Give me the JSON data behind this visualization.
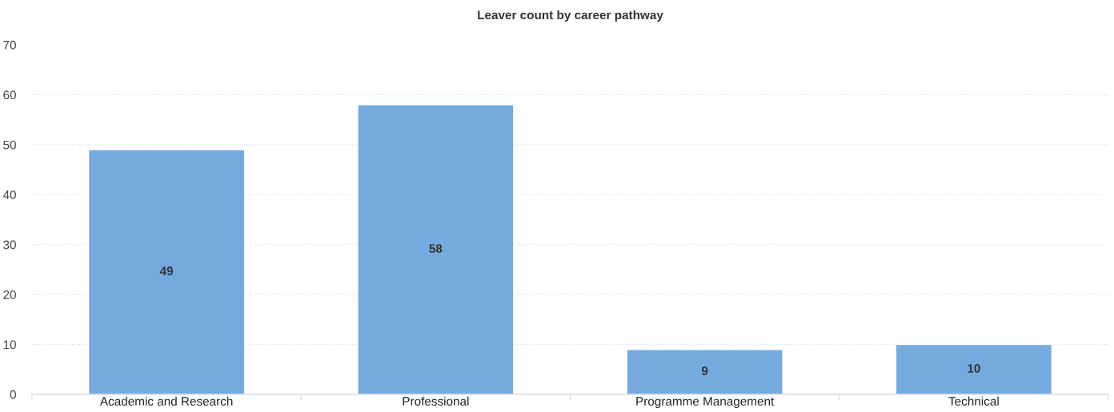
{
  "chart_data": {
    "type": "bar",
    "title": "Leaver count by career pathway",
    "categories": [
      "Academic and Research",
      "Professional",
      "Programme Management",
      "Technical"
    ],
    "values": [
      49,
      58,
      9,
      10
    ],
    "color": "#75aadf",
    "ylim": [
      0,
      70
    ],
    "yticks": [
      0,
      10,
      20,
      30,
      40,
      50,
      60,
      70
    ],
    "grid": "y",
    "data_labels": true,
    "legend": false
  }
}
